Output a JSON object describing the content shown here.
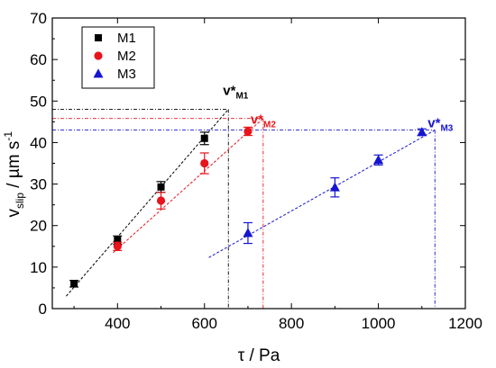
{
  "chart_data": {
    "type": "scatter",
    "xlabel": {
      "main": "τ / Pa"
    },
    "ylabel": {
      "pre": "v",
      "sub": "slip",
      "mid": " / µm s",
      "sup": "-1"
    },
    "xlim": [
      250,
      1200
    ],
    "ylim": [
      0,
      70
    ],
    "xticks": [
      400,
      600,
      800,
      1000,
      1200
    ],
    "yticks": [
      0,
      10,
      20,
      30,
      40,
      50,
      60,
      70
    ],
    "grid": false,
    "legend": "top-left",
    "series": [
      {
        "name": "M1",
        "color": "#000000",
        "marker": "square",
        "points": [
          {
            "x": 300,
            "y": 6.0,
            "err": 0.8
          },
          {
            "x": 400,
            "y": 16.5,
            "err": 1.0
          },
          {
            "x": 500,
            "y": 29.3,
            "err": 1.3
          },
          {
            "x": 600,
            "y": 41.0,
            "err": 1.5
          }
        ],
        "fit": {
          "x1": 282,
          "y1": 3.0,
          "x2": 655,
          "y2": 48.0
        },
        "crit": {
          "x": 655,
          "y": 48.0
        },
        "annotation": {
          "base": "v*",
          "sub": "M1"
        }
      },
      {
        "name": "M2",
        "color": "#e8141b",
        "marker": "circle",
        "points": [
          {
            "x": 400,
            "y": 15.0,
            "err": 1.0
          },
          {
            "x": 500,
            "y": 26.0,
            "err": 2.0
          },
          {
            "x": 600,
            "y": 35.0,
            "err": 2.5
          },
          {
            "x": 700,
            "y": 42.7,
            "err": 1.0
          }
        ],
        "fit": {
          "x1": 390,
          "y1": 13.5,
          "x2": 735,
          "y2": 45.8
        },
        "crit": {
          "x": 735,
          "y": 45.8
        },
        "annotation": {
          "base": "v*",
          "sub": "M2"
        }
      },
      {
        "name": "M3",
        "color": "#1515d0",
        "marker": "triangle",
        "points": [
          {
            "x": 700,
            "y": 18.2,
            "err": 2.5
          },
          {
            "x": 900,
            "y": 29.2,
            "err": 2.3
          },
          {
            "x": 1000,
            "y": 35.8,
            "err": 1.2
          },
          {
            "x": 1100,
            "y": 42.5,
            "err": 0.8
          }
        ],
        "fit": {
          "x1": 610,
          "y1": 12.3,
          "x2": 1130,
          "y2": 43.0
        },
        "crit": {
          "x": 1130,
          "y": 43.0
        },
        "annotation": {
          "base": "v*",
          "sub": "M3"
        }
      }
    ]
  }
}
